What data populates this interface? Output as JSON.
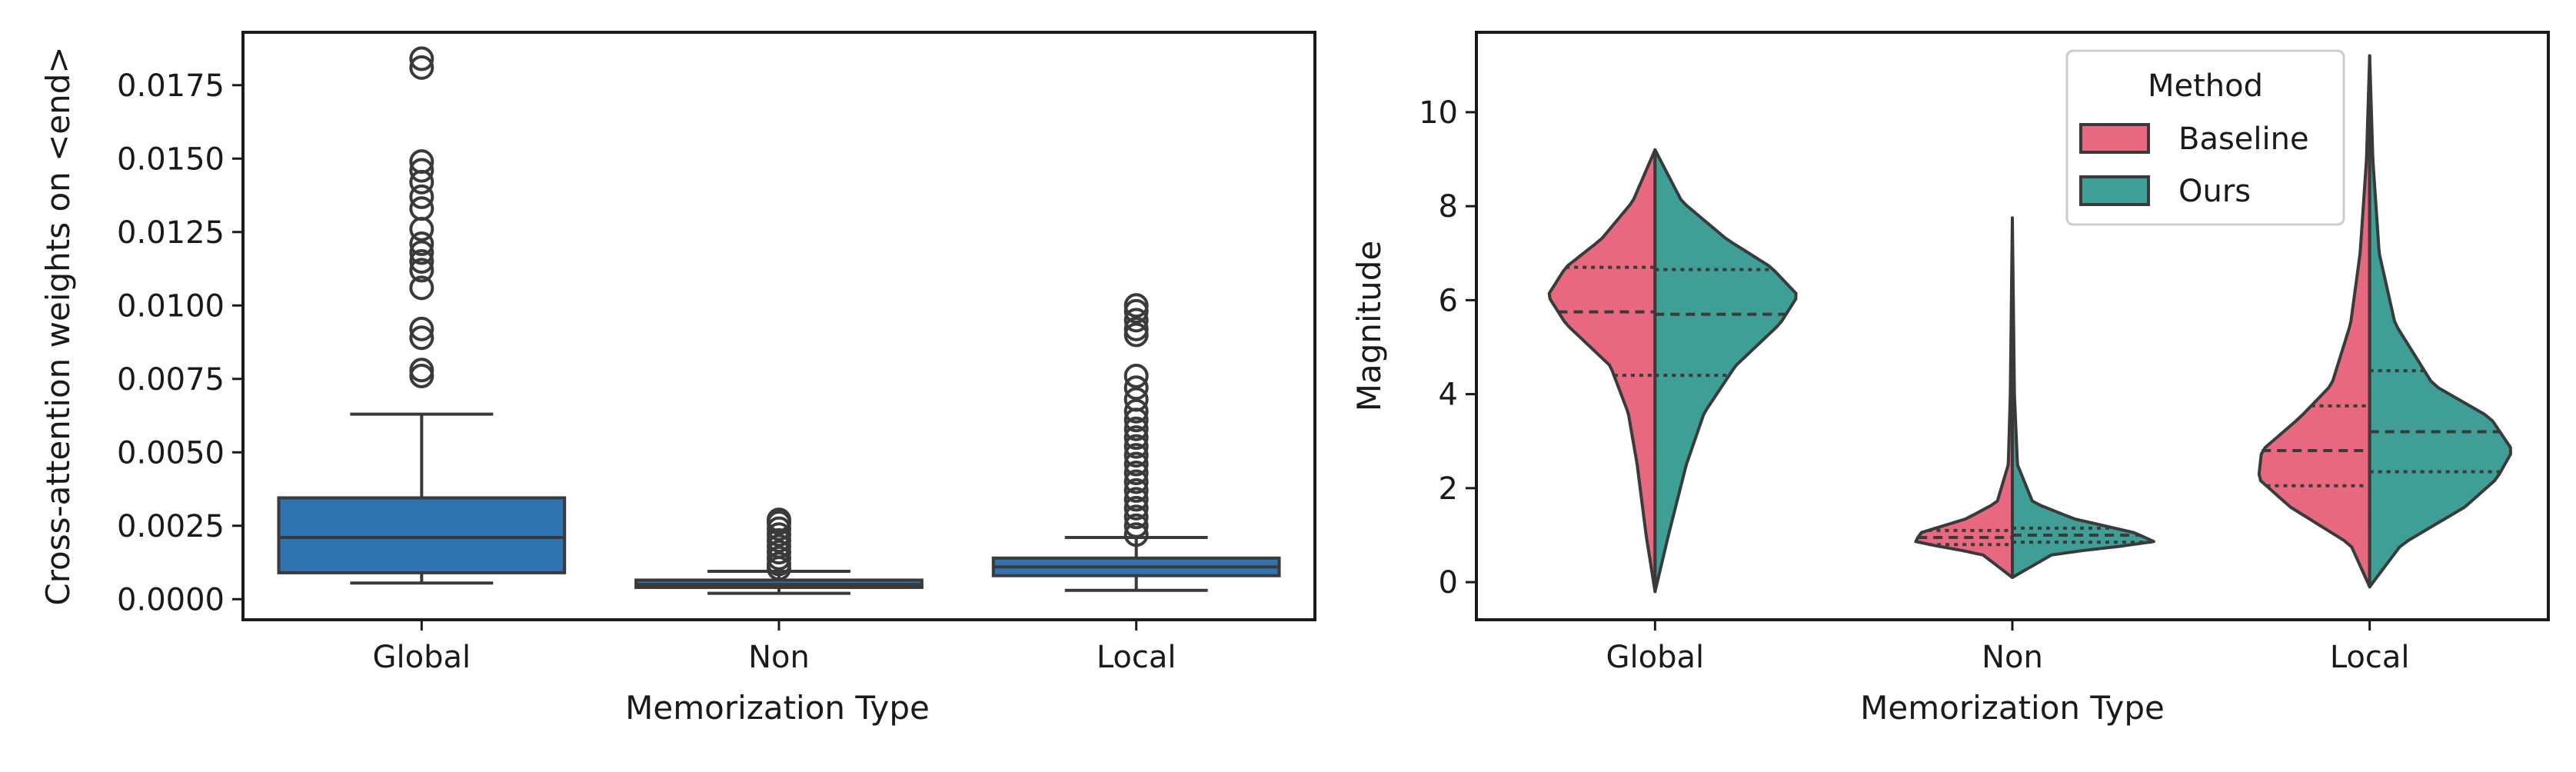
{
  "figure": {
    "panels": [
      "left-boxplot",
      "right-violin"
    ]
  },
  "chart_data": [
    {
      "type": "box",
      "xlabel": "Memorization Type",
      "ylabel": "Cross-attention weights on <end>",
      "categories": [
        "Global",
        "Non",
        "Local"
      ],
      "ylim": [
        -0.0007,
        0.0193
      ],
      "yticks": [
        0.0,
        0.0025,
        0.005,
        0.0075,
        0.01,
        0.0125,
        0.015,
        0.0175
      ],
      "ytick_labels": [
        "0.0000",
        "0.0025",
        "0.0050",
        "0.0075",
        "0.0100",
        "0.0125",
        "0.0150",
        "0.0175"
      ],
      "color": "#2f73b0",
      "boxes": [
        {
          "category": "Global",
          "whisker_low": 0.00055,
          "q1": 0.0009,
          "median": 0.0021,
          "q3": 0.00345,
          "whisker_high": 0.0063,
          "outliers": [
            0.0076,
            0.0078,
            0.0089,
            0.0092,
            0.0106,
            0.0112,
            0.0115,
            0.0118,
            0.0121,
            0.0126,
            0.0133,
            0.0137,
            0.0142,
            0.0146,
            0.0149,
            0.0181,
            0.0184
          ]
        },
        {
          "category": "Non",
          "whisker_low": 0.0002,
          "q1": 0.0004,
          "median": 0.0005,
          "q3": 0.00065,
          "whisker_high": 0.00095,
          "outliers": [
            0.00105,
            0.0012,
            0.0014,
            0.0016,
            0.0018,
            0.002,
            0.0022,
            0.0024,
            0.0026,
            0.0027
          ]
        },
        {
          "category": "Local",
          "whisker_low": 0.0003,
          "q1": 0.0008,
          "median": 0.0011,
          "q3": 0.0014,
          "whisker_high": 0.0021,
          "outliers": [
            0.0022,
            0.0025,
            0.0028,
            0.0031,
            0.0034,
            0.0037,
            0.004,
            0.0043,
            0.0046,
            0.0049,
            0.0052,
            0.0055,
            0.0058,
            0.0061,
            0.0064,
            0.0068,
            0.0072,
            0.0076,
            0.009,
            0.0092,
            0.0095,
            0.0098,
            0.01
          ]
        }
      ]
    },
    {
      "type": "violin",
      "xlabel": "Memorization Type",
      "ylabel": "Magnitude",
      "categories": [
        "Global",
        "Non",
        "Local"
      ],
      "ylim": [
        -0.8,
        11.7
      ],
      "yticks": [
        0,
        2,
        4,
        6,
        8,
        10
      ],
      "ytick_labels": [
        "0",
        "2",
        "4",
        "6",
        "8",
        "10"
      ],
      "legend": {
        "title": "Method",
        "position": "top-right",
        "entries": [
          "Baseline",
          "Ours"
        ]
      },
      "series": [
        {
          "name": "Baseline",
          "color": "#e8687f"
        },
        {
          "name": "Ours",
          "color": "#3f9e96"
        }
      ],
      "violins": [
        {
          "category": "Global",
          "left_profile": [
            [
              -0.2,
              0
            ],
            [
              1.0,
              2
            ],
            [
              2.5,
              4
            ],
            [
              3.6,
              6
            ],
            [
              4.6,
              10
            ],
            [
              5.5,
              20
            ],
            [
              6.1,
              24
            ],
            [
              6.7,
              20
            ],
            [
              7.3,
              12
            ],
            [
              8.1,
              5
            ],
            [
              9.2,
              0
            ]
          ],
          "right_profile": [
            [
              -0.2,
              0
            ],
            [
              1.0,
              3
            ],
            [
              2.5,
              7
            ],
            [
              3.6,
              11
            ],
            [
              4.6,
              18
            ],
            [
              5.5,
              28
            ],
            [
              6.1,
              32
            ],
            [
              6.7,
              26
            ],
            [
              7.3,
              16
            ],
            [
              8.1,
              6
            ],
            [
              9.2,
              0
            ]
          ],
          "left_quartiles": [
            4.4,
            5.75,
            6.7
          ],
          "right_quartiles": [
            4.4,
            5.7,
            6.65
          ]
        },
        {
          "category": "Non",
          "left_profile": [
            [
              0.1,
              0
            ],
            [
              0.6,
              30
            ],
            [
              0.85,
              95
            ],
            [
              1.05,
              90
            ],
            [
              1.35,
              45
            ],
            [
              1.7,
              15
            ],
            [
              2.5,
              4
            ],
            [
              4.0,
              2
            ],
            [
              7.75,
              0
            ]
          ],
          "right_profile": [
            [
              0.1,
              0
            ],
            [
              0.6,
              40
            ],
            [
              0.85,
              140
            ],
            [
              1.05,
              120
            ],
            [
              1.35,
              60
            ],
            [
              1.7,
              20
            ],
            [
              2.5,
              5
            ],
            [
              4.0,
              2
            ],
            [
              7.75,
              0
            ]
          ],
          "left_quartiles": [
            0.8,
            0.95,
            1.1
          ],
          "right_quartiles": [
            0.85,
            1.0,
            1.15
          ]
        },
        {
          "category": "Local",
          "left_profile": [
            [
              -0.1,
              0
            ],
            [
              0.8,
              6
            ],
            [
              1.6,
              25
            ],
            [
              2.2,
              35
            ],
            [
              2.8,
              34
            ],
            [
              3.5,
              22
            ],
            [
              4.2,
              12
            ],
            [
              5.5,
              6
            ],
            [
              7.0,
              3
            ],
            [
              9.0,
              1
            ],
            [
              11.2,
              0
            ]
          ],
          "right_profile": [
            [
              -0.1,
              0
            ],
            [
              0.8,
              10
            ],
            [
              1.6,
              30
            ],
            [
              2.2,
              40
            ],
            [
              2.8,
              45
            ],
            [
              3.5,
              38
            ],
            [
              4.2,
              20
            ],
            [
              5.5,
              8
            ],
            [
              7.0,
              3
            ],
            [
              9.0,
              1
            ],
            [
              11.2,
              0
            ]
          ],
          "left_quartiles": [
            2.05,
            2.8,
            3.75
          ],
          "right_quartiles": [
            2.35,
            3.2,
            4.5
          ]
        }
      ]
    }
  ]
}
